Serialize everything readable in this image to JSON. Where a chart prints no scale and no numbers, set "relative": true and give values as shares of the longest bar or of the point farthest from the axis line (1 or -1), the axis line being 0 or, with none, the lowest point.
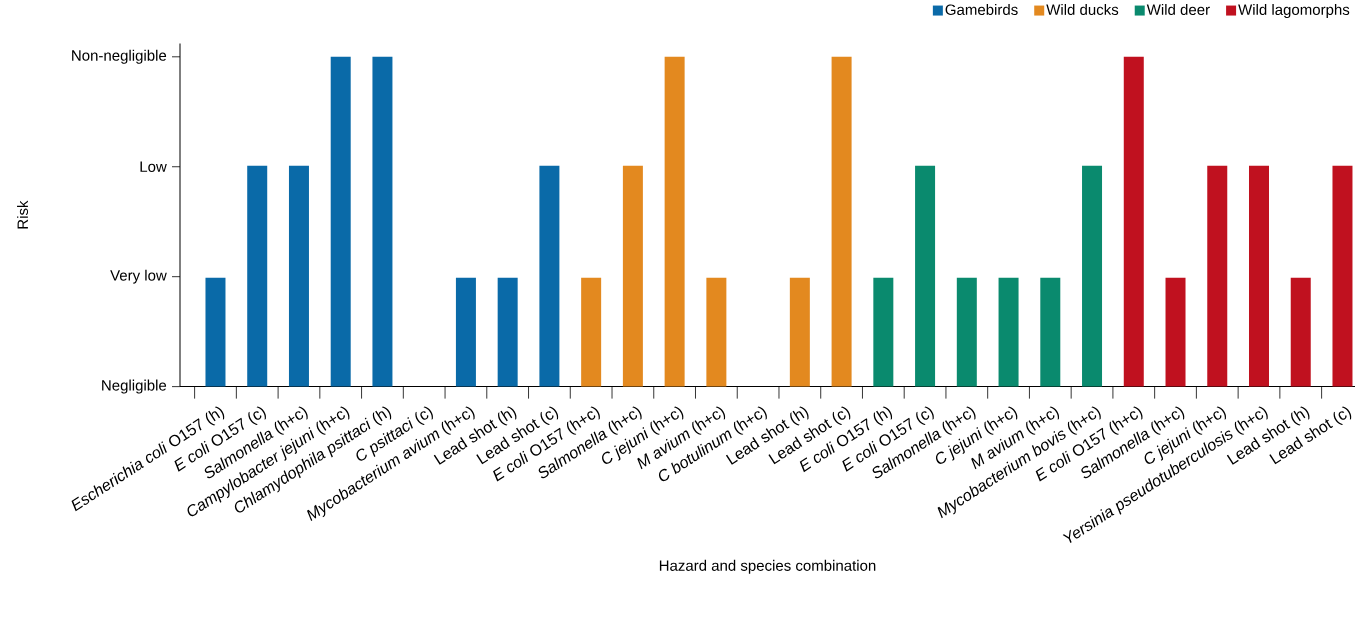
{
  "chart_data": {
    "type": "bar",
    "xlabel": "Hazard and species combination",
    "ylabel": "Risk",
    "relative": true,
    "categories": [
      "*Escherichia coli* O157 (h)",
      "*E coli* O157 (c)",
      "*Salmonella* (h+c)",
      "*Campylobacter jejuni* (h+c)",
      "*Chlamydophila psittaci* (h)",
      "*C psittaci* (c)",
      "*Mycobacterium avium* (h+c)",
      "Lead shot (h)",
      "Lead shot (c)",
      "*E coli* O157 (h+c)",
      "*Salmonella* (h+c)",
      "*C jejuni* (h+c)",
      "*M avium* (h+c)",
      "*C botulinum* (h+c)",
      "Lead shot (h)",
      "Lead shot (c)",
      "*E coli* O157 (h)",
      "*E coli* O157 (c)",
      "*Salmonella* (h+c)",
      "*C jejuni* (h+c)",
      "*M avium* (h+c)",
      "*Mycobacterium bovis* (h+c)",
      "*E coli* O157 (h+c)",
      "*Salmonella* (h+c)",
      "*C jejuni* (h+c)",
      "*Yersinia pseudotuberculosis* (h+c)",
      "Lead shot (h)",
      "Lead shot (c)"
    ],
    "series": [
      {
        "name": "Gamebirds",
        "color": "#0a6aa8",
        "values": [
          0.33,
          0.67,
          0.67,
          1,
          1,
          0,
          0.33,
          0.33,
          0.67,
          null,
          null,
          null,
          null,
          null,
          null,
          null,
          null,
          null,
          null,
          null,
          null,
          null,
          null,
          null,
          null,
          null,
          null,
          null
        ]
      },
      {
        "name": "Wild ducks",
        "color": "#e3891f",
        "values": [
          null,
          null,
          null,
          null,
          null,
          null,
          null,
          null,
          null,
          0.33,
          0.67,
          1,
          0.33,
          0,
          0.33,
          1,
          null,
          null,
          null,
          null,
          null,
          null,
          null,
          null,
          null,
          null,
          null,
          null
        ]
      },
      {
        "name": "Wild deer",
        "color": "#0a8a6e",
        "values": [
          null,
          null,
          null,
          null,
          null,
          null,
          null,
          null,
          null,
          null,
          null,
          null,
          null,
          null,
          null,
          null,
          0.33,
          0.67,
          0.33,
          0.33,
          0.33,
          0.67,
          null,
          null,
          null,
          null,
          null,
          null
        ]
      },
      {
        "name": "Wild lagomorphs",
        "color": "#c0111f",
        "values": [
          null,
          null,
          null,
          null,
          null,
          null,
          null,
          null,
          null,
          null,
          null,
          null,
          null,
          null,
          null,
          null,
          null,
          null,
          null,
          null,
          null,
          null,
          1,
          0.33,
          0.67,
          0.67,
          0.33,
          0.67
        ]
      }
    ],
    "annotations": [
      "Negligible",
      "Very low",
      "Low",
      "Non-negligible"
    ],
    "legend": "top right"
  }
}
